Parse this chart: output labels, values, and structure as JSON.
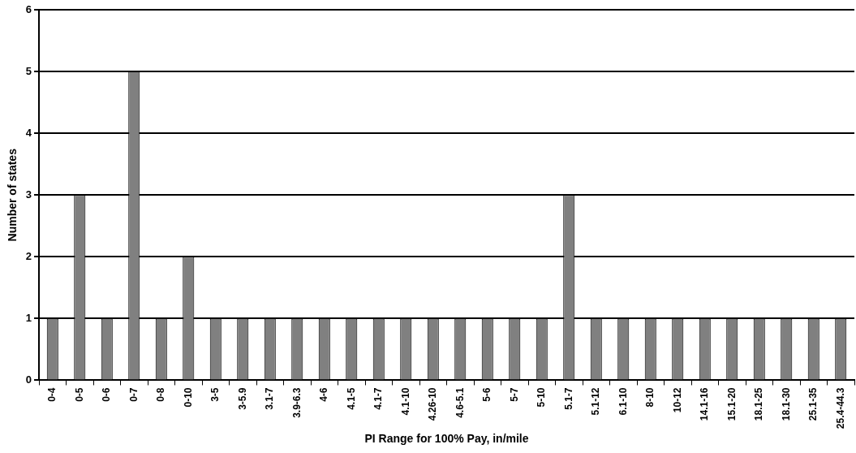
{
  "chart_data": {
    "type": "bar",
    "xlabel": "PI Range for 100% Pay, in/mile",
    "ylabel": "Number of states",
    "categories": [
      "0-4",
      "0-5",
      "0-6",
      "0-7",
      "0-8",
      "0-10",
      "3-5",
      "3-5.9",
      "3.1-7",
      "3.9-6.3",
      "4-6",
      "4.1-5",
      "4.1-7",
      "4.1-10",
      "4.26-10",
      "4.6-5.1",
      "5-6",
      "5-7",
      "5-10",
      "5.1-7",
      "5.1-12",
      "6.1-10",
      "8-10",
      "10-12",
      "14.1-16",
      "15.1-20",
      "18.1-25",
      "18.1-30",
      "25.1-35",
      "25.4-44.3"
    ],
    "values": [
      1,
      3,
      1,
      5,
      1,
      2,
      1,
      1,
      1,
      1,
      1,
      1,
      1,
      1,
      1,
      1,
      1,
      1,
      1,
      3,
      1,
      1,
      1,
      1,
      1,
      1,
      1,
      1,
      1,
      1
    ],
    "color": "#808080",
    "ylim": [
      0,
      6
    ],
    "yticks": [
      0,
      1,
      2,
      3,
      4,
      5,
      6
    ],
    "grid": "y",
    "legend": false
  }
}
